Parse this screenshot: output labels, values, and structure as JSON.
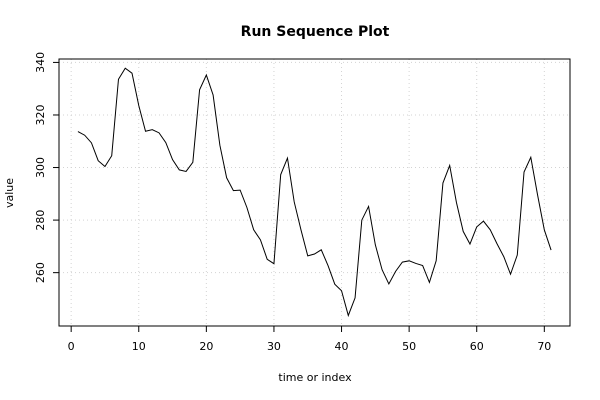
{
  "chart_data": {
    "type": "line",
    "title": "Run Sequence Plot",
    "xlabel": "time or index",
    "ylabel": "value",
    "xlim": [
      -1.8,
      73.8
    ],
    "ylim": [
      239.7,
      341.3
    ],
    "grid": true,
    "xticks": [
      0,
      10,
      20,
      30,
      40,
      50,
      60,
      70
    ],
    "yticks": [
      260,
      280,
      300,
      320,
      340
    ],
    "xtick_labels": [
      "0",
      "10",
      "20",
      "30",
      "40",
      "50",
      "60",
      "70"
    ],
    "ytick_labels": [
      "260",
      "280",
      "300",
      "320",
      "340"
    ],
    "series": [
      {
        "x": [
          1,
          2,
          3,
          4,
          5,
          6,
          7,
          8,
          9,
          10,
          11,
          12,
          13,
          14,
          15,
          16,
          17,
          18,
          19,
          20,
          21,
          22,
          23,
          24,
          25,
          26,
          27,
          28,
          29,
          30,
          31,
          32,
          33,
          34,
          35,
          36,
          37,
          38,
          39,
          40,
          41,
          42,
          43,
          44,
          45,
          46,
          47,
          48,
          49,
          50,
          51,
          52,
          53,
          54,
          55,
          56,
          57,
          58,
          59,
          60,
          61,
          62,
          63,
          64,
          65,
          66,
          67,
          68,
          69,
          70,
          71
        ],
        "values": [
          313.7,
          312.3,
          309.4,
          302.6,
          300.4,
          304.5,
          333.6,
          337.8,
          335.9,
          323.6,
          313.8,
          314.4,
          313.2,
          309.5,
          303.0,
          299.1,
          298.5,
          302.0,
          329.6,
          335.2,
          327.6,
          308.5,
          296.1,
          291.2,
          291.4,
          284.8,
          276.3,
          272.5,
          265.1,
          263.4,
          297.3,
          303.6,
          286.9,
          276.3,
          266.4,
          267.1,
          268.7,
          262.7,
          255.6,
          253.1,
          243.7,
          250.4,
          280.0,
          285.2,
          270.6,
          261.1,
          255.7,
          260.5,
          264.0,
          264.5,
          263.5,
          262.7,
          256.3,
          264.5,
          294.1,
          300.8,
          286.7,
          275.7,
          270.9,
          277.4,
          279.6,
          276.3,
          271.0,
          266.1,
          259.4,
          266.7,
          298.3,
          303.9,
          289.6,
          276.3,
          268.6
        ]
      }
    ]
  }
}
